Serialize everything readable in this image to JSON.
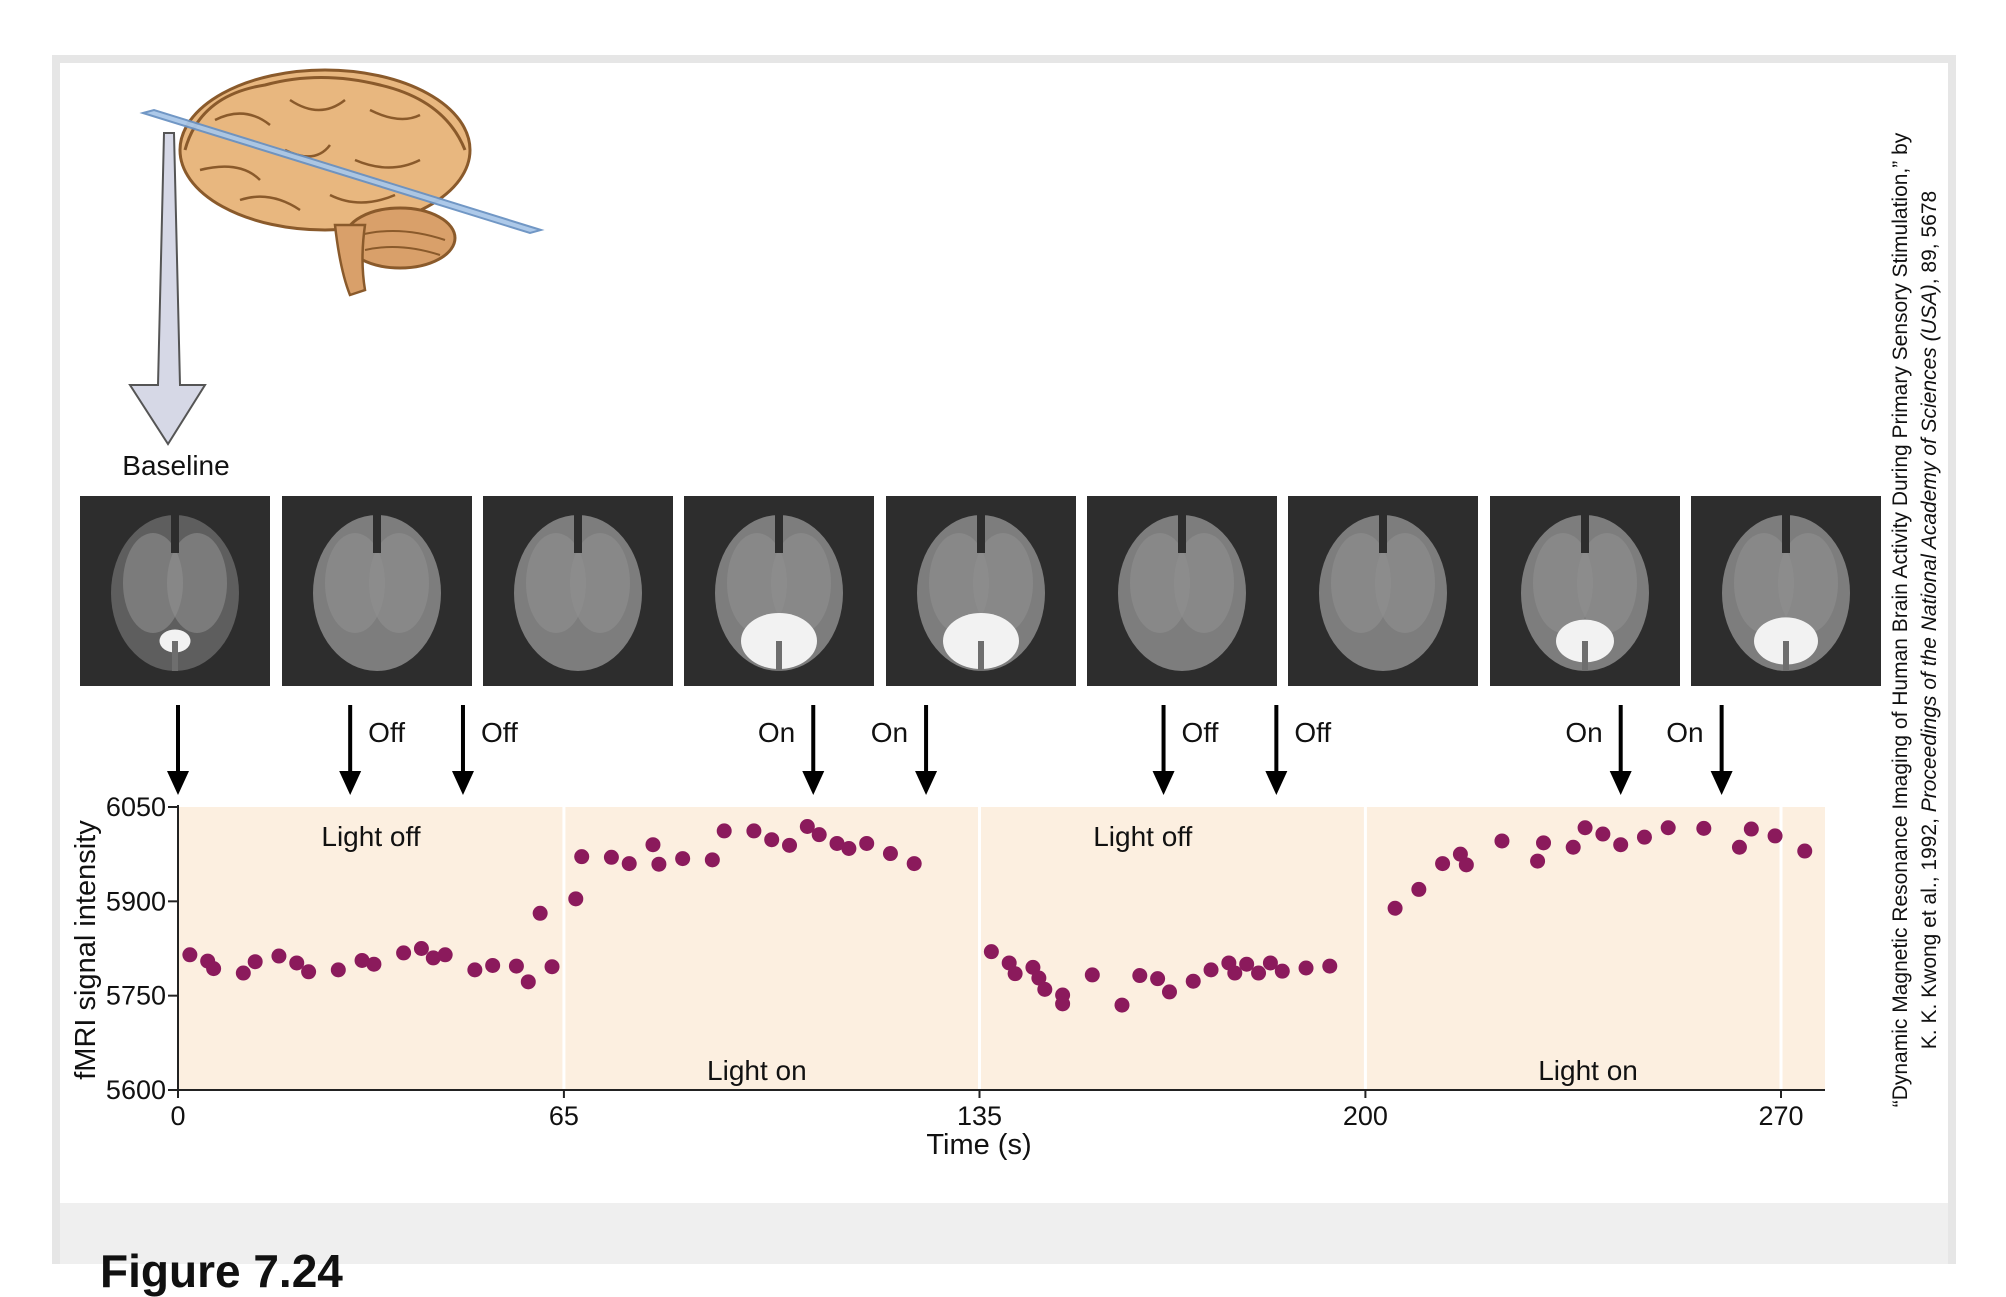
{
  "figure": {
    "figure_label": "Figure 7.24",
    "baseline_label": "Baseline",
    "credit_line1": "“Dynamic Magnetic Resonance Imaging of Human Brain Activity During Primary Sensory Stimulation,” by",
    "credit_line2_prefix": "K. K. Kwong et al., 1992, ",
    "credit_line2_journal": "Proceedings of the National Academy of Sciences (USA)",
    "credit_line2_suffix": ", 89, 5678",
    "scan_labels": [
      {
        "time": 0,
        "label": ""
      },
      {
        "time": 29,
        "label": "Off"
      },
      {
        "time": 48,
        "label": "Off"
      },
      {
        "time": 107,
        "label": "On"
      },
      {
        "time": 126,
        "label": "On"
      },
      {
        "time": 166,
        "label": "Off"
      },
      {
        "time": 185,
        "label": "Off"
      },
      {
        "time": 243,
        "label": "On"
      },
      {
        "time": 260,
        "label": "On"
      }
    ],
    "colors": {
      "dot": "#8b1a5c",
      "band": "#fcefe0",
      "arrow": "#000000",
      "big_arrow_fill": "#d6d8e6"
    }
  },
  "chart_data": {
    "type": "scatter",
    "title": "",
    "xlabel": "Time (s)",
    "ylabel": "fMRI signal intensity",
    "xlim": [
      0,
      270
    ],
    "ylim": [
      5600,
      6050
    ],
    "xticks": [
      0,
      65,
      135,
      200,
      270
    ],
    "yticks": [
      5600,
      5750,
      5900,
      6050
    ],
    "grid": false,
    "phase_boundaries": [
      65,
      135,
      200,
      270
    ],
    "phase_labels": [
      {
        "text": "Light off",
        "x_center": 32.5,
        "position": "top"
      },
      {
        "text": "Light on",
        "x_center": 97.5,
        "position": "bottom"
      },
      {
        "text": "Light off",
        "x_center": 162.5,
        "position": "top"
      },
      {
        "text": "Light on",
        "x_center": 237.5,
        "position": "bottom"
      }
    ],
    "series": [
      {
        "x": [
          2,
          5,
          6,
          11,
          13,
          17,
          20,
          22,
          27,
          31,
          33,
          38,
          41,
          43,
          45,
          50,
          53,
          57,
          59,
          61,
          63,
          67,
          68,
          73,
          76,
          80,
          81,
          85,
          90,
          92,
          97,
          100,
          103,
          106,
          108,
          111,
          113,
          116,
          120,
          124,
          137,
          140,
          141,
          144,
          145,
          146,
          149,
          149,
          154,
          159,
          162,
          165,
          167,
          171,
          174,
          177,
          178,
          180,
          182,
          184,
          186,
          190,
          194,
          205,
          209,
          213,
          216,
          217,
          223,
          229,
          230,
          235,
          237,
          240,
          243,
          247,
          251,
          257,
          263,
          265,
          269,
          274
        ],
        "y": [
          5815,
          5805,
          5793,
          5786,
          5804,
          5813,
          5802,
          5788,
          5791,
          5806,
          5800,
          5818,
          5825,
          5810,
          5815,
          5791,
          5798,
          5797,
          5772,
          5881,
          5796,
          5904,
          5971,
          5970,
          5960,
          5990,
          5959,
          5968,
          5966,
          6012,
          6012,
          5998,
          5989,
          6019,
          6006,
          5992,
          5984,
          5992,
          5976,
          5960,
          5820,
          5802,
          5785,
          5795,
          5778,
          5760,
          5751,
          5737,
          5783,
          5735,
          5782,
          5777,
          5756,
          5773,
          5791,
          5802,
          5786,
          5800,
          5786,
          5802,
          5789,
          5794,
          5797,
          5889,
          5919,
          5960,
          5975,
          5958,
          5996,
          5964,
          5993,
          5986,
          6017,
          6007,
          5990,
          6002,
          6017,
          6016,
          5986,
          6015,
          6004,
          5980
        ]
      }
    ]
  }
}
